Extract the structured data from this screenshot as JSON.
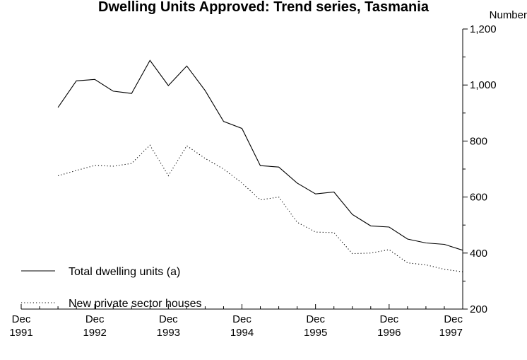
{
  "chart_data": {
    "type": "line",
    "title": "Dwelling Units Approved: Trend series, Tasmania",
    "ylabel": "Number",
    "ylim": [
      200,
      1200
    ],
    "y_ticks": [
      200,
      400,
      600,
      800,
      1000,
      1200
    ],
    "y_tick_labels": [
      "200",
      "400",
      "600",
      "800",
      "1,000",
      "1,200"
    ],
    "x_ticks": [
      {
        "line1": "Dec",
        "line2": "1991"
      },
      {
        "line1": "Dec",
        "line2": "1992"
      },
      {
        "line1": "Dec",
        "line2": "1993"
      },
      {
        "line1": "Dec",
        "line2": "1994"
      },
      {
        "line1": "Dec",
        "line2": "1995"
      },
      {
        "line1": "Dec",
        "line2": "1996"
      },
      {
        "line1": "Dec",
        "line2": "1997"
      }
    ],
    "x_range_years": [
      1991.917,
      1997.917
    ],
    "legend_position": "bottom-left",
    "grid": false,
    "series": [
      {
        "name": "Total dwelling units (a)",
        "style": "solid",
        "color": "#000000",
        "x": [
          1992.417,
          1992.667,
          1992.917,
          1993.167,
          1993.417,
          1993.667,
          1993.917,
          1994.167,
          1994.417,
          1994.667,
          1994.917,
          1995.167,
          1995.417,
          1995.667,
          1995.917,
          1996.167,
          1996.417,
          1996.667,
          1996.917,
          1997.167,
          1997.417,
          1997.667,
          1997.917
        ],
        "values": [
          920,
          1015,
          1020,
          978,
          970,
          1088,
          998,
          1068,
          980,
          870,
          845,
          712,
          707,
          650,
          611,
          618,
          538,
          497,
          493,
          450,
          436,
          431,
          410
        ]
      },
      {
        "name": "New private sector houses",
        "style": "dotted",
        "color": "#000000",
        "x": [
          1992.417,
          1992.667,
          1992.917,
          1993.167,
          1993.417,
          1993.667,
          1993.917,
          1994.167,
          1994.417,
          1994.667,
          1994.917,
          1995.167,
          1995.417,
          1995.667,
          1995.917,
          1996.167,
          1996.417,
          1996.667,
          1996.917,
          1997.167,
          1997.417,
          1997.667,
          1997.917
        ],
        "values": [
          676,
          695,
          713,
          710,
          720,
          785,
          676,
          783,
          738,
          700,
          650,
          590,
          600,
          510,
          475,
          473,
          398,
          400,
          412,
          365,
          358,
          342,
          333
        ]
      }
    ]
  }
}
